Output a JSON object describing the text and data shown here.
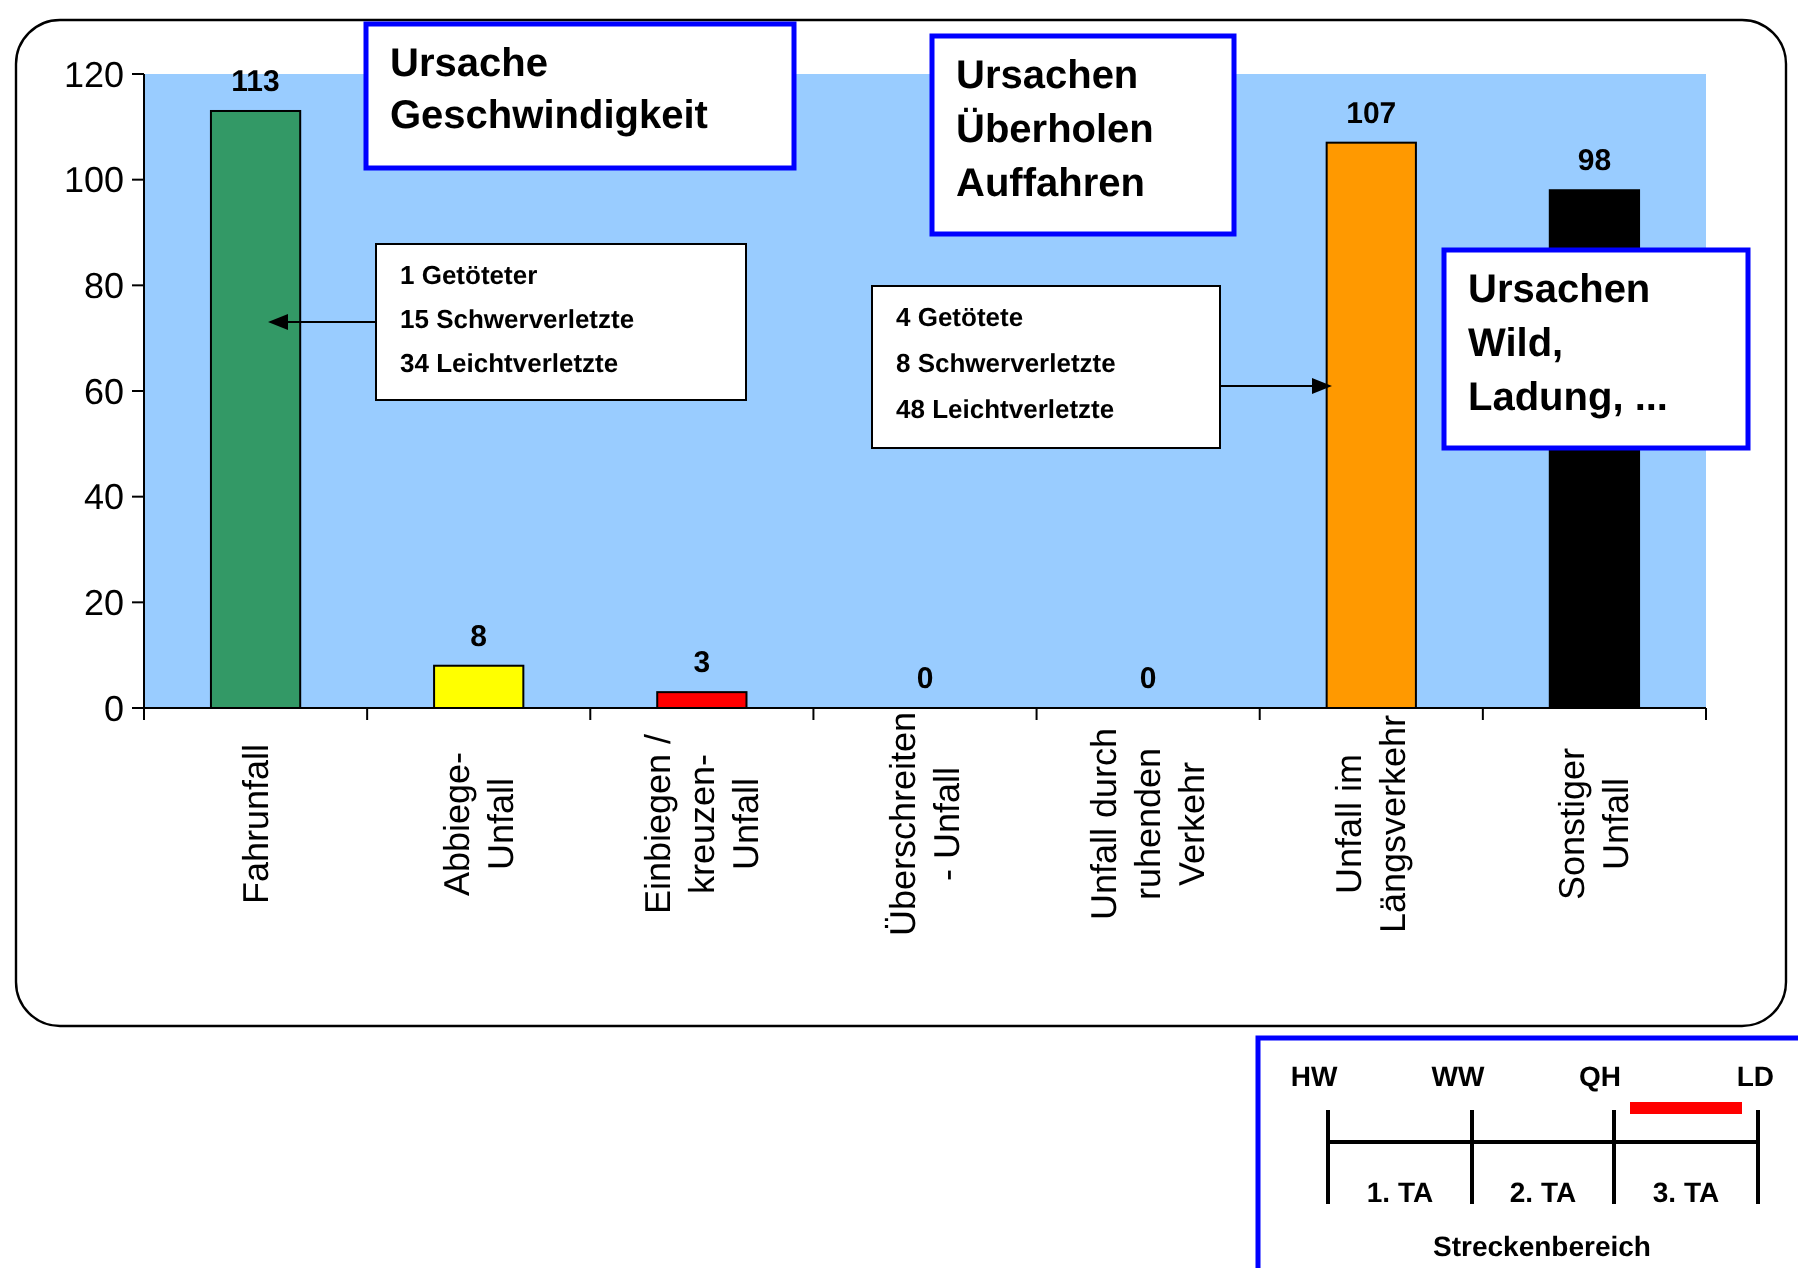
{
  "chart_data": [
    {
      "type": "bar",
      "categories": [
        "Fahrunfall",
        "Abbiege-\nUnfall",
        "Einbiegen /\nkreuzen-\nUnfall",
        "Überschreiten\n- Unfall",
        "Unfall durch\nruhenden\nVerkehr",
        "Unfall im\nLängsverkehr",
        "Sonstiger\nUnfall"
      ],
      "values": [
        113,
        8,
        3,
        0,
        0,
        107,
        98
      ],
      "colors": [
        "#339966",
        "#ffff00",
        "#ff0000",
        "#ffffff",
        "#ffffff",
        "#ff9900",
        "#000000"
      ],
      "ylim": [
        0,
        120
      ],
      "yticks": [
        0,
        20,
        40,
        60,
        80,
        100,
        120
      ],
      "data_labels": true,
      "grid": false,
      "annotations": [
        "Ursache\nGeschwindigkeit",
        "Ursachen\nÜberholen\nAuffahren",
        "Ursachen\nWild,\nLadung, ...",
        "1   Getöteter\n15 Schwerverletzte\n34 Leichtverletzte",
        "4   Getötete\n8   Schwerverletzte\n48 Leichtverletzte"
      ]
    },
    {
      "type": "other",
      "annotations": [
        "HW",
        "WW",
        "QH",
        "LD",
        "1. TA",
        "2. TA",
        "3. TA",
        "Streckenbereich"
      ]
    }
  ]
}
